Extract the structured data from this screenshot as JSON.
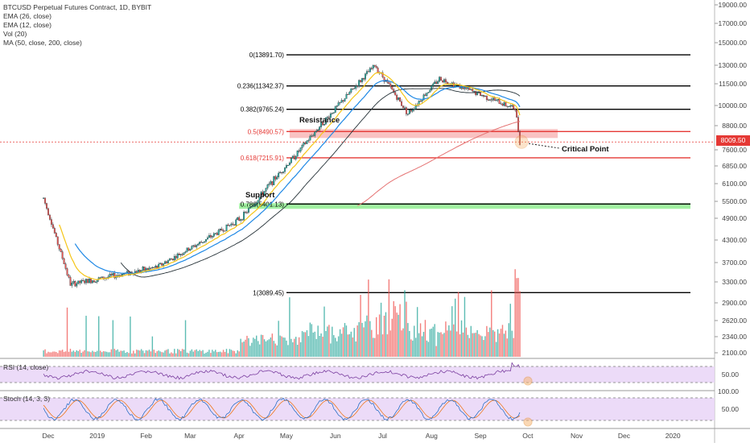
{
  "legend": {
    "title": "BTCUSD Perpetual Futures Contract, 1D, BYBIT",
    "indicators": [
      "EMA (26, close)",
      "EMA (12, close)",
      "Vol (20)",
      "MA (50, close, 200, close)"
    ]
  },
  "rsi_label": "RSI (14, close)",
  "stoch_label": "Stoch (14, 3, 3)",
  "current_price": "8009.50",
  "colors": {
    "up": "#26a69a",
    "down": "#ef5350",
    "ema12": "#f5c518",
    "ema26": "#1e88e5",
    "ma50": "#263238",
    "ma200": "#e57373",
    "fib_black": "#000000",
    "fib_red": "#e53935",
    "resistance_zone": "#f8bbbb",
    "support_zone": "#90ee90",
    "osc_fill": "#e9d5f7"
  },
  "chart_data": {
    "type": "candlestick",
    "x_axis_labels": [
      "Dec",
      "2019",
      "Feb",
      "Mar",
      "Apr",
      "May",
      "Jun",
      "Jul",
      "Aug",
      "Sep",
      "Oct",
      "Nov",
      "Dec",
      "2020"
    ],
    "price_ticks": [
      "19000.00",
      "17000.00",
      "15000.00",
      "13000.00",
      "11500.00",
      "10000.00",
      "8800.00",
      "7600.00",
      "6850.00",
      "6100.00",
      "5500.00",
      "4900.00",
      "4300.00",
      "3700.00",
      "3300.00",
      "2900.00",
      "2620.00",
      "2340.00",
      "2100.00"
    ],
    "rsi_ticks": [
      "50.00"
    ],
    "stoch_ticks": [
      "100.00",
      "50.00"
    ],
    "fib_levels": [
      {
        "label": "0(13891.70)",
        "price": 13891.7
      },
      {
        "label": "0.236(11342.37)",
        "price": 11342.37
      },
      {
        "label": "0.382(9765.24)",
        "price": 9765.24
      },
      {
        "label": "0.5(8490.57)",
        "price": 8490.57
      },
      {
        "label": "0.618(7215.91)",
        "price": 7215.91
      },
      {
        "label": "0.786(5401.13)",
        "price": 5401.13
      },
      {
        "label": "1(3089.45)",
        "price": 3089.45
      }
    ],
    "annotations": [
      "Resistance",
      "Support",
      "Critical Point"
    ],
    "key_points": [
      {
        "date": "2018-11-28",
        "close": 5600
      },
      {
        "date": "2018-12-15",
        "close": 3250
      },
      {
        "date": "2019-02-08",
        "close": 3600
      },
      {
        "date": "2019-04-02",
        "close": 4900
      },
      {
        "date": "2019-05-14",
        "close": 8000
      },
      {
        "date": "2019-06-26",
        "close": 13000
      },
      {
        "date": "2019-07-17",
        "close": 9500
      },
      {
        "date": "2019-08-06",
        "close": 11900
      },
      {
        "date": "2019-09-23",
        "close": 9800
      },
      {
        "date": "2019-09-26",
        "close": 8009.5
      }
    ]
  }
}
